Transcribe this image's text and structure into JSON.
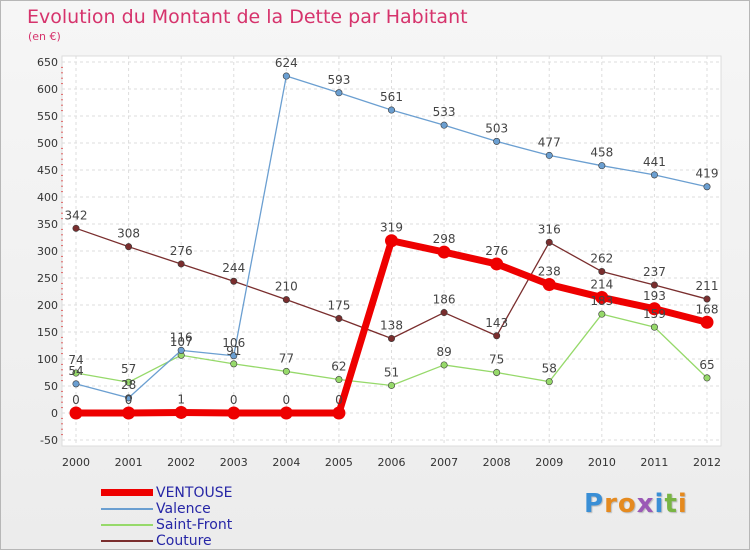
{
  "header": {
    "title": "Evolution du Montant de la Dette par Habitant",
    "subtitle": "(en €)"
  },
  "brand": {
    "letters": [
      "P",
      "r",
      "o",
      "x",
      "i",
      "t",
      "i"
    ],
    "colors": [
      "#3a8fd6",
      "#e58a1f",
      "#e58a1f",
      "#9b59b6",
      "#3a8fd6",
      "#79b544",
      "#e58a1f"
    ]
  },
  "chart_data": {
    "type": "line",
    "title": "Evolution du Montant de la Dette par Habitant",
    "subtitle": "(en €)",
    "xlabel": "",
    "ylabel": "",
    "x": [
      "2000",
      "2001",
      "2002",
      "2003",
      "2004",
      "2005",
      "2006",
      "2007",
      "2008",
      "2009",
      "2010",
      "2011",
      "2012"
    ],
    "ylim": [
      -50,
      650
    ],
    "yticks": [
      -50,
      0,
      50,
      100,
      150,
      200,
      250,
      300,
      350,
      400,
      450,
      500,
      550,
      600,
      650
    ],
    "grid": true,
    "legend_position": "bottom-left",
    "series": [
      {
        "name": "VENTOUSE",
        "color": "#ee0000",
        "values": [
          0,
          0,
          1,
          0,
          0,
          0,
          319,
          298,
          276,
          238,
          214,
          193,
          168
        ],
        "labels": [
          "0",
          "0",
          "1",
          "0",
          "0",
          "0",
          "319",
          "298",
          "276",
          "238",
          "214",
          "193",
          "168"
        ]
      },
      {
        "name": "Valence",
        "color": "#6b9fd1",
        "values": [
          54,
          28,
          116,
          106,
          624,
          593,
          561,
          533,
          503,
          477,
          458,
          441,
          419
        ],
        "labels": [
          "54",
          "28",
          "116",
          "106",
          "624",
          "593",
          "561",
          "533",
          "503",
          "477",
          "458",
          "441",
          "419"
        ]
      },
      {
        "name": "Saint-Front",
        "color": "#96d96a",
        "values": [
          74,
          57,
          107,
          91,
          77,
          62,
          51,
          89,
          75,
          58,
          183,
          159,
          65
        ],
        "labels": [
          "74",
          "57",
          "107",
          "91",
          "77",
          "62",
          "51",
          "89",
          "75",
          "58",
          "183",
          "159",
          "65"
        ]
      },
      {
        "name": "Couture",
        "color": "#7a2e2e",
        "values": [
          342,
          308,
          276,
          244,
          210,
          175,
          138,
          186,
          143,
          316,
          262,
          237,
          211
        ],
        "labels": [
          "342",
          "308",
          "276",
          "244",
          "210",
          "175",
          "138",
          "186",
          "143",
          "316",
          "262",
          "237",
          "211"
        ]
      }
    ]
  }
}
